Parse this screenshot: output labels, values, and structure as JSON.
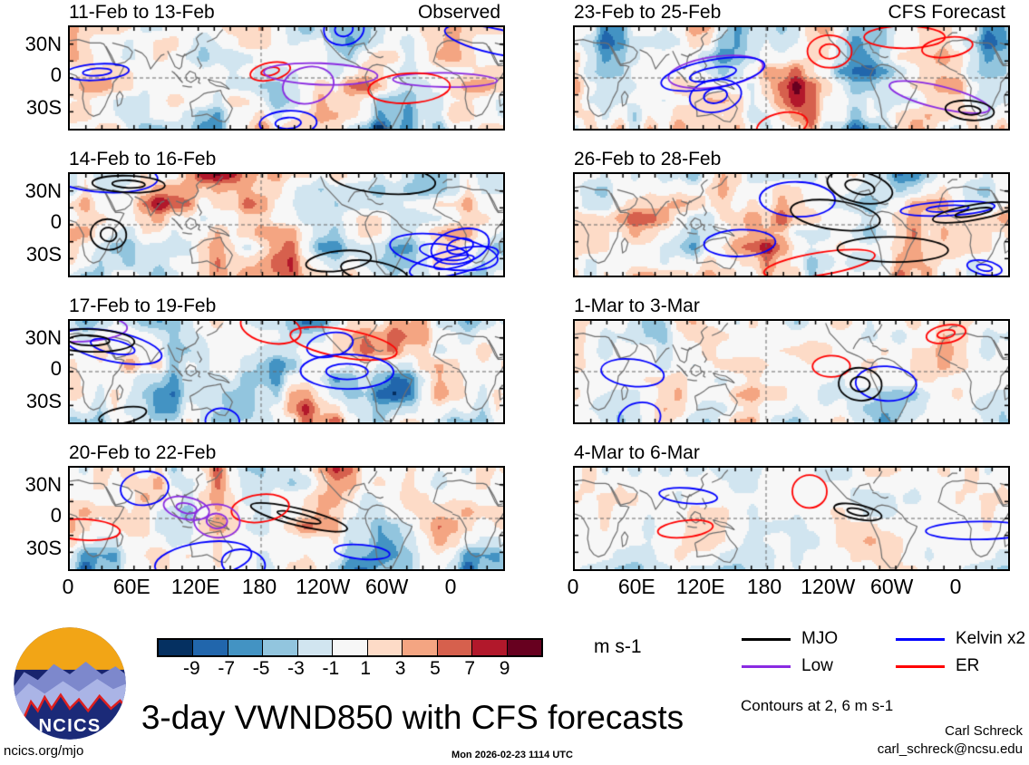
{
  "figure": {
    "title": "3-day VWND850 with CFS forecasts",
    "site_url": "ncics.org/mjo",
    "timestamp": "Mon 2026-02-23 1114 UTC",
    "credit_name": "Carl Schreck",
    "credit_email": "carl_schreck@ncsu.edu",
    "contours_note": "Contours at 2, 6 m s-1",
    "logo_text": "NCICS"
  },
  "chart_data": {
    "type": "heatmap",
    "title": "3-day VWND850 with CFS forecasts",
    "description": "Eight filled-contour anomaly maps of 850 hPa meridional wind (VWND850) over the global tropics (30S-30N, longitudes 0-360), four observed 3-day periods in the left column and four CFS forecast periods in the right column, with wave-type contour overlays.",
    "columns": [
      {
        "label": "Observed"
      },
      {
        "label": "CFS Forecast"
      }
    ],
    "panels": [
      {
        "title": "11-Feb to 13-Feb",
        "column": "Observed",
        "intensity": 1.0
      },
      {
        "title": "23-Feb to 25-Feb",
        "column": "CFS Forecast",
        "intensity": 1.0
      },
      {
        "title": "14-Feb to 16-Feb",
        "column": "Observed",
        "intensity": 1.0
      },
      {
        "title": "26-Feb to 28-Feb",
        "column": "CFS Forecast",
        "intensity": 0.95
      },
      {
        "title": "17-Feb to 19-Feb",
        "column": "Observed",
        "intensity": 1.0
      },
      {
        "title": "1-Mar to 3-Mar",
        "column": "CFS Forecast",
        "intensity": 0.7
      },
      {
        "title": "20-Feb to 22-Feb",
        "column": "Observed",
        "intensity": 0.95
      },
      {
        "title": "4-Mar to 6-Mar",
        "column": "CFS Forecast",
        "intensity": 0.5
      }
    ],
    "y_ticks": [
      "30N",
      "0",
      "30S"
    ],
    "x_ticks": [
      "0",
      "60E",
      "120E",
      "180",
      "120W",
      "60W",
      "0"
    ],
    "grid": "dashed line at the equator and at 180 longitude in each panel",
    "colorbar": {
      "units": "m s-1",
      "tick_labels": [
        "-9",
        "-7",
        "-5",
        "-3",
        "-1",
        "1",
        "3",
        "5",
        "7",
        "9"
      ],
      "colors": [
        "#053061",
        "#2166ac",
        "#4393c3",
        "#92c5de",
        "#d1e5f0",
        "#f7f7f7",
        "#fddbc7",
        "#f4a582",
        "#d6604d",
        "#b2182b",
        "#67001f"
      ]
    },
    "legend": [
      {
        "label": "MJO",
        "color": "#000000"
      },
      {
        "label": "Low",
        "color": "#8a2be2"
      },
      {
        "label": "Kelvin x2",
        "color": "#0000ff"
      },
      {
        "label": "ER",
        "color": "#ff0000"
      }
    ],
    "coastline_color": "#6e6e6e"
  }
}
